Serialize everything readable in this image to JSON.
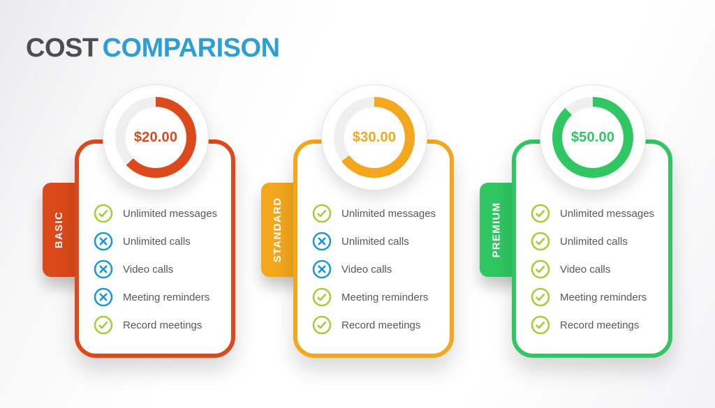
{
  "title": {
    "word1": "COST",
    "word2": "COMPARISON"
  },
  "colors": {
    "accent_bar": "#2e9fd4",
    "title_dark": "#4d4d4f",
    "title_blue": "#2e9fd4",
    "check": "#a3ce3a",
    "cross": "#199ad6",
    "ring_track": "#efefef",
    "feature_text": "#57585a"
  },
  "plans": [
    {
      "name": "BASIC",
      "price": "$20.00",
      "color": "#dc491b",
      "ring_percent": 63,
      "features": [
        {
          "label": "Unlimited messages",
          "included": true
        },
        {
          "label": "Unlimited calls",
          "included": false
        },
        {
          "label": "Video calls",
          "included": false
        },
        {
          "label": "Meeting reminders",
          "included": false
        },
        {
          "label": "Record meetings",
          "included": true
        }
      ]
    },
    {
      "name": "STANDARD",
      "price": "$30.00",
      "color": "#f2a71d",
      "ring_percent": 65,
      "features": [
        {
          "label": "Unlimited messages",
          "included": true
        },
        {
          "label": "Unlimited calls",
          "included": false
        },
        {
          "label": "Video calls",
          "included": false
        },
        {
          "label": "Meeting reminders",
          "included": true
        },
        {
          "label": "Record meetings",
          "included": true
        }
      ]
    },
    {
      "name": "PREMIUM",
      "price": "$50.00",
      "color": "#30c763",
      "ring_percent": 88,
      "features": [
        {
          "label": "Unlimited messages",
          "included": true
        },
        {
          "label": "Unlimited calls",
          "included": true
        },
        {
          "label": "Video calls",
          "included": true
        },
        {
          "label": "Meeting reminders",
          "included": true
        },
        {
          "label": "Record meetings",
          "included": true
        }
      ]
    }
  ]
}
